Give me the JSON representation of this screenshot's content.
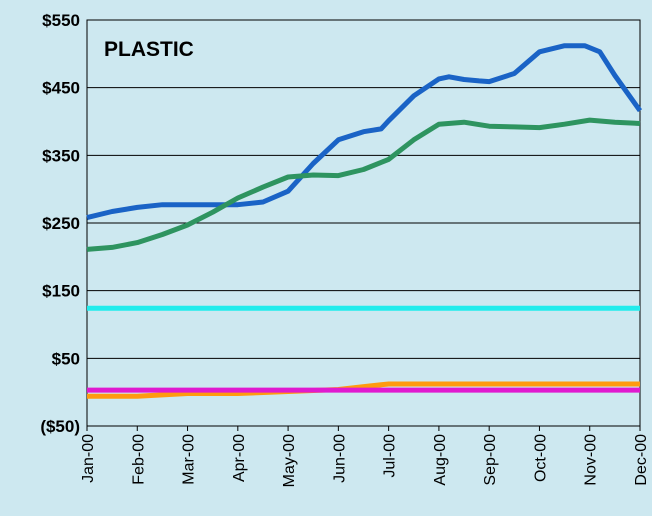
{
  "chart_data": {
    "type": "line",
    "title": "PLASTIC",
    "xlabel": "",
    "ylabel": "",
    "categories": [
      "Jan-00",
      "Feb-00",
      "Mar-00",
      "Apr-00",
      "May-00",
      "Jun-00",
      "Jul-00",
      "Aug-00",
      "Sep-00",
      "Oct-00",
      "Nov-00",
      "Dec-00"
    ],
    "y_ticks": [
      "($50)",
      "$50",
      "$150",
      "$250",
      "$350",
      "$450",
      "$550"
    ],
    "y_tick_values": [
      -50,
      50,
      150,
      250,
      350,
      450,
      550
    ],
    "ylim": [
      -50,
      550
    ],
    "grid": true,
    "legend": "none",
    "series": [
      {
        "color": "#1a63c6",
        "x": [
          0,
          0.5,
          1,
          1.5,
          2,
          2.5,
          3,
          3.5,
          4,
          4.5,
          5,
          5.5,
          5.85,
          6,
          6.5,
          7,
          7.2,
          7.5,
          7.8,
          8,
          8.5,
          9,
          9.5,
          9.9,
          10.2,
          10.5,
          11
        ],
        "values": [
          258,
          267,
          273,
          277,
          277,
          277,
          277,
          281,
          297,
          338,
          373,
          385,
          389,
          401,
          438,
          463,
          466,
          462,
          460,
          459,
          471,
          503,
          512,
          512,
          503,
          468,
          416
        ]
      },
      {
        "color": "#2e9460",
        "x": [
          0,
          0.5,
          1,
          1.5,
          2,
          2.5,
          3,
          3.5,
          4,
          4.5,
          5,
          5.5,
          6,
          6.5,
          7,
          7.5,
          8,
          8.5,
          9,
          9.5,
          10,
          10.5,
          11
        ],
        "values": [
          211,
          214,
          221,
          233,
          247,
          266,
          287,
          303,
          318,
          321,
          320,
          329,
          344,
          373,
          396,
          399,
          393,
          392,
          391,
          396,
          402,
          399,
          397
        ]
      },
      {
        "color": "#22ecec",
        "x": [
          0,
          11
        ],
        "values": [
          124,
          124
        ]
      },
      {
        "color": "#ff9a10",
        "x": [
          0,
          1,
          2,
          3,
          4,
          5,
          5.6,
          6,
          7,
          8,
          9,
          10,
          11
        ],
        "values": [
          -6,
          -6,
          -2,
          -2,
          1,
          4,
          9,
          12,
          12,
          12,
          12,
          12,
          12
        ]
      },
      {
        "color": "#e01ad0",
        "x": [
          0,
          11
        ],
        "values": [
          3,
          3
        ]
      }
    ]
  }
}
